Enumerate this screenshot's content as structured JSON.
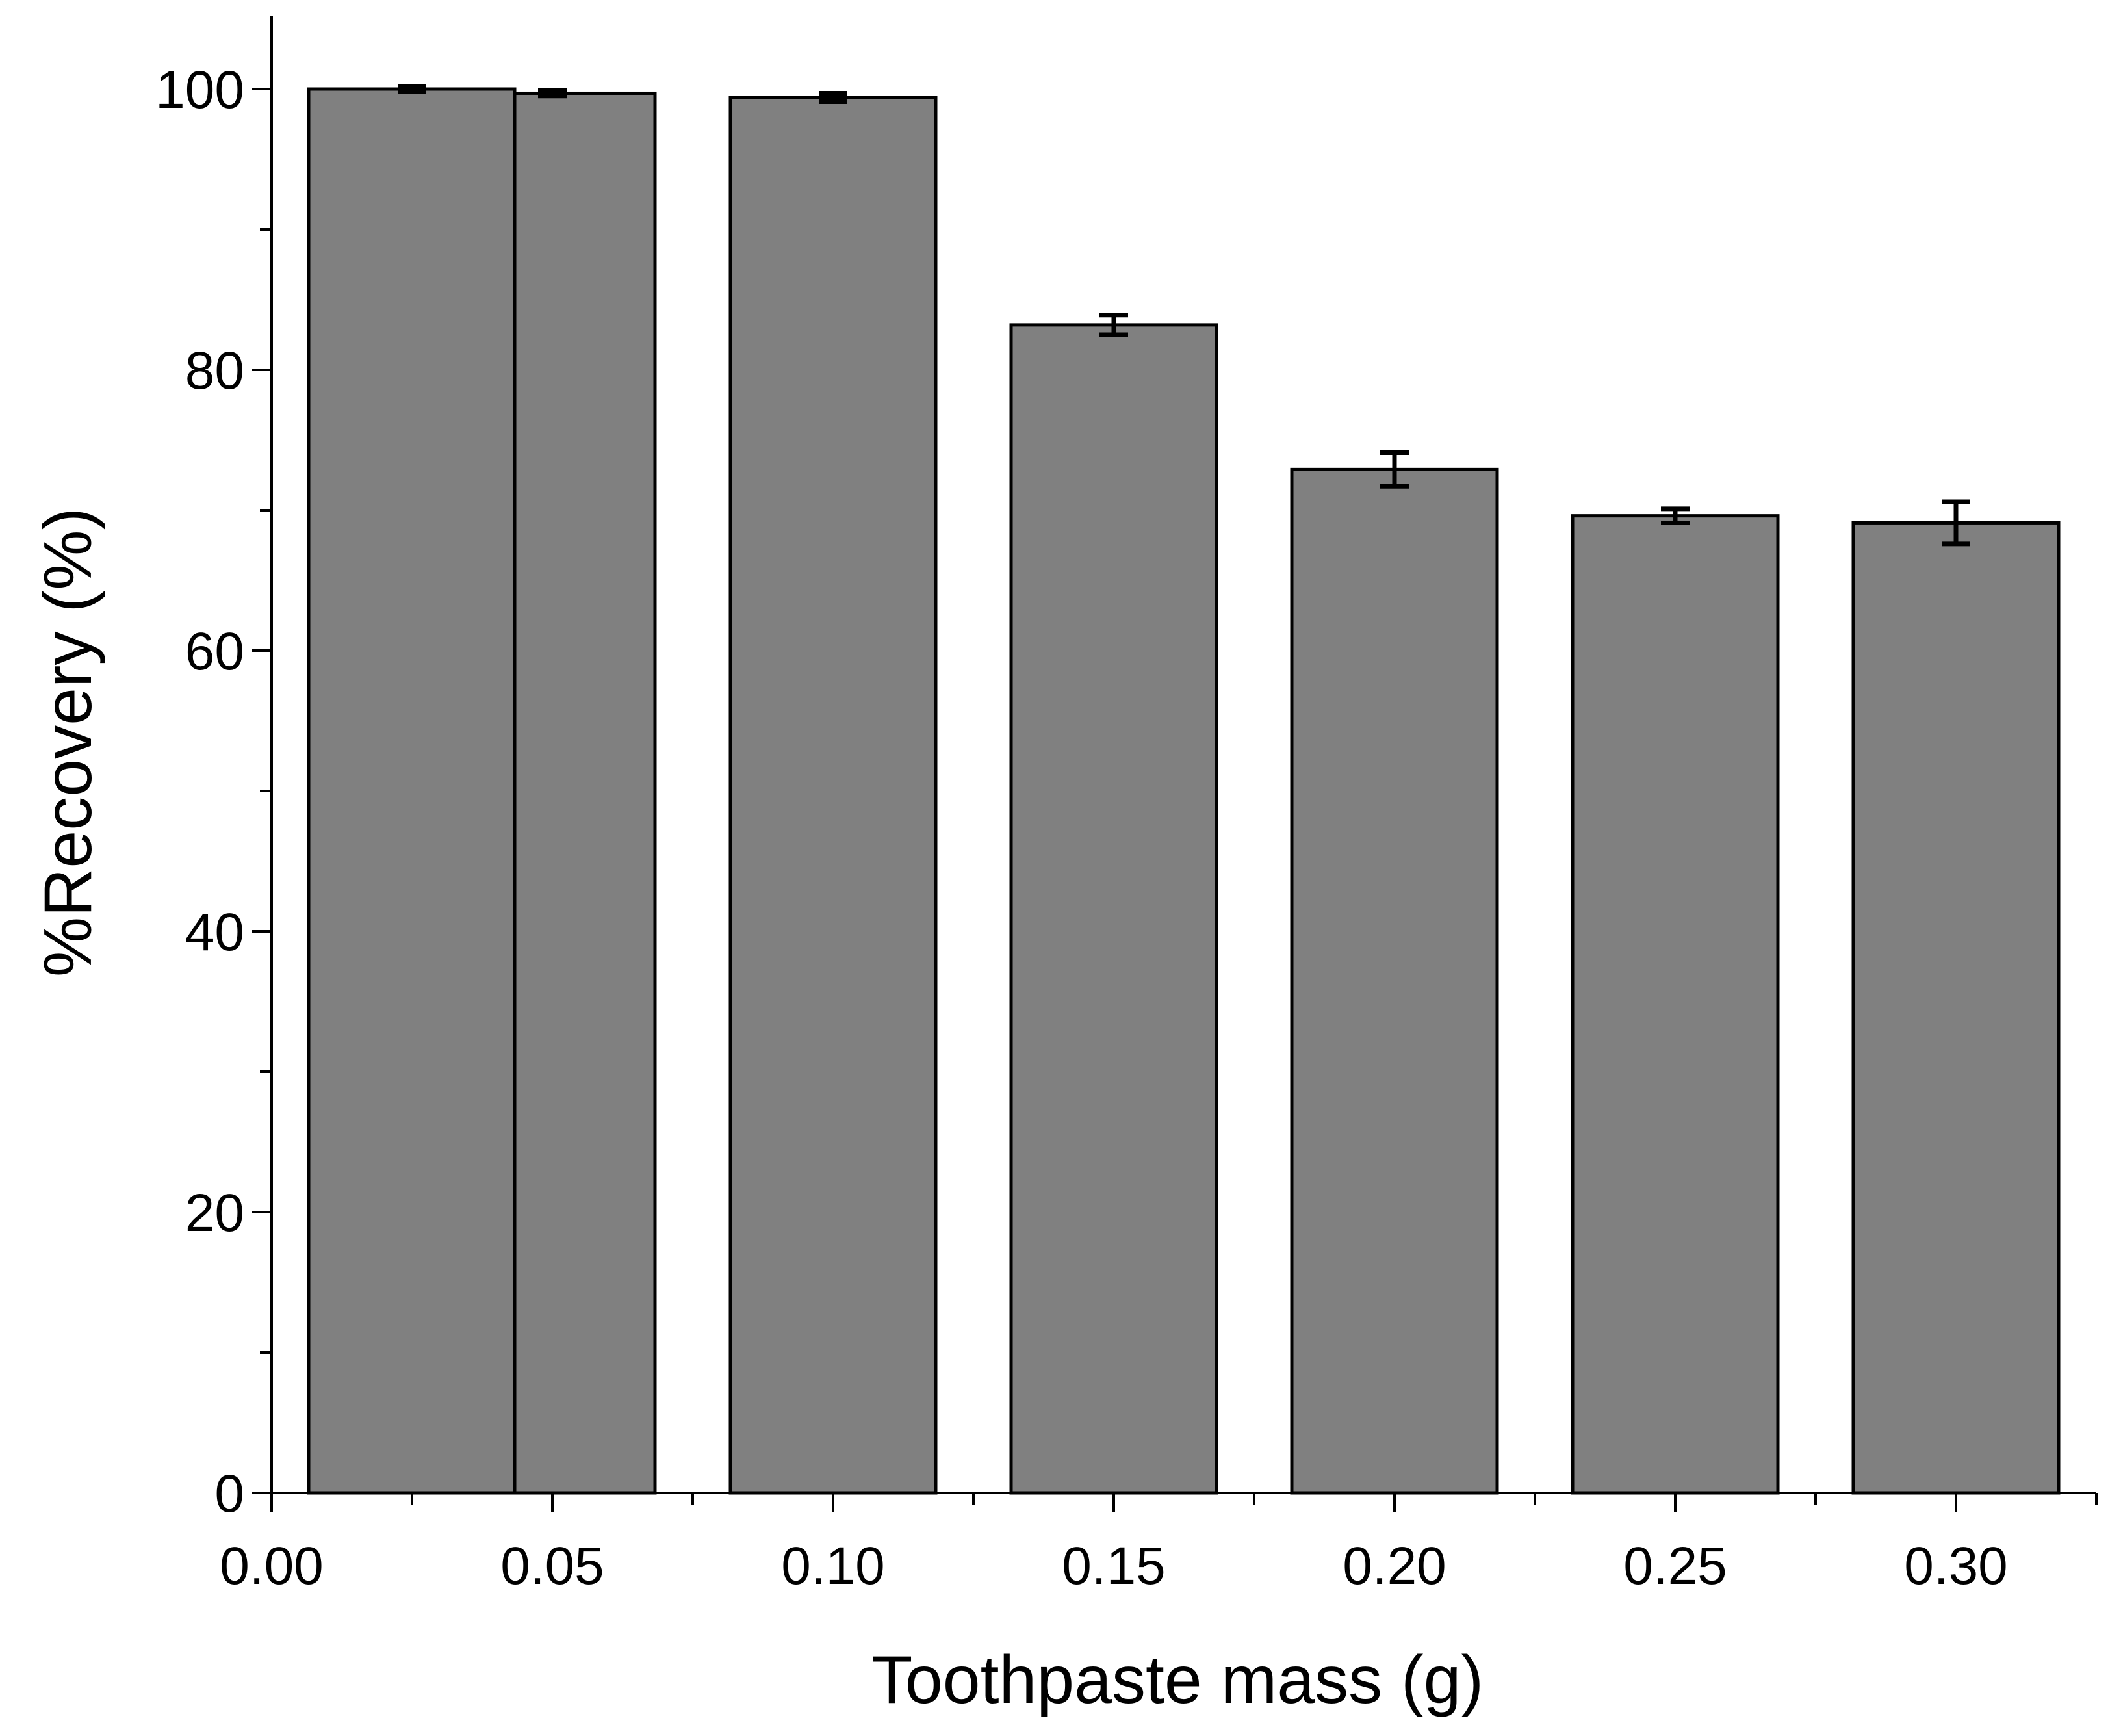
{
  "chart_data": {
    "type": "bar",
    "xlabel": "Toothpaste mass (g)",
    "ylabel": "%Recovery (%)",
    "xlim": [
      0.0,
      0.325
    ],
    "ylim": [
      0,
      105
    ],
    "x_ticks": [
      0.0,
      0.05,
      0.1,
      0.15,
      0.2,
      0.25,
      0.3
    ],
    "x_tick_labels": [
      "0.00",
      "0.05",
      "0.10",
      "0.15",
      "0.20",
      "0.25",
      "0.30"
    ],
    "y_ticks": [
      0,
      20,
      40,
      60,
      80,
      100
    ],
    "y_tick_labels": [
      "0",
      "20",
      "40",
      "60",
      "80",
      "100"
    ],
    "grid": false,
    "legend": false,
    "series": [
      {
        "x": [
          0.025,
          0.05,
          0.1,
          0.15,
          0.2,
          0.25,
          0.3
        ],
        "values": [
          100.0,
          99.7,
          99.4,
          83.2,
          72.9,
          69.6,
          69.1
        ],
        "error": [
          0.2,
          0.2,
          0.3,
          0.7,
          1.2,
          0.5,
          1.5
        ]
      }
    ],
    "bar_color": "#808080",
    "edge_color": "#000000"
  }
}
